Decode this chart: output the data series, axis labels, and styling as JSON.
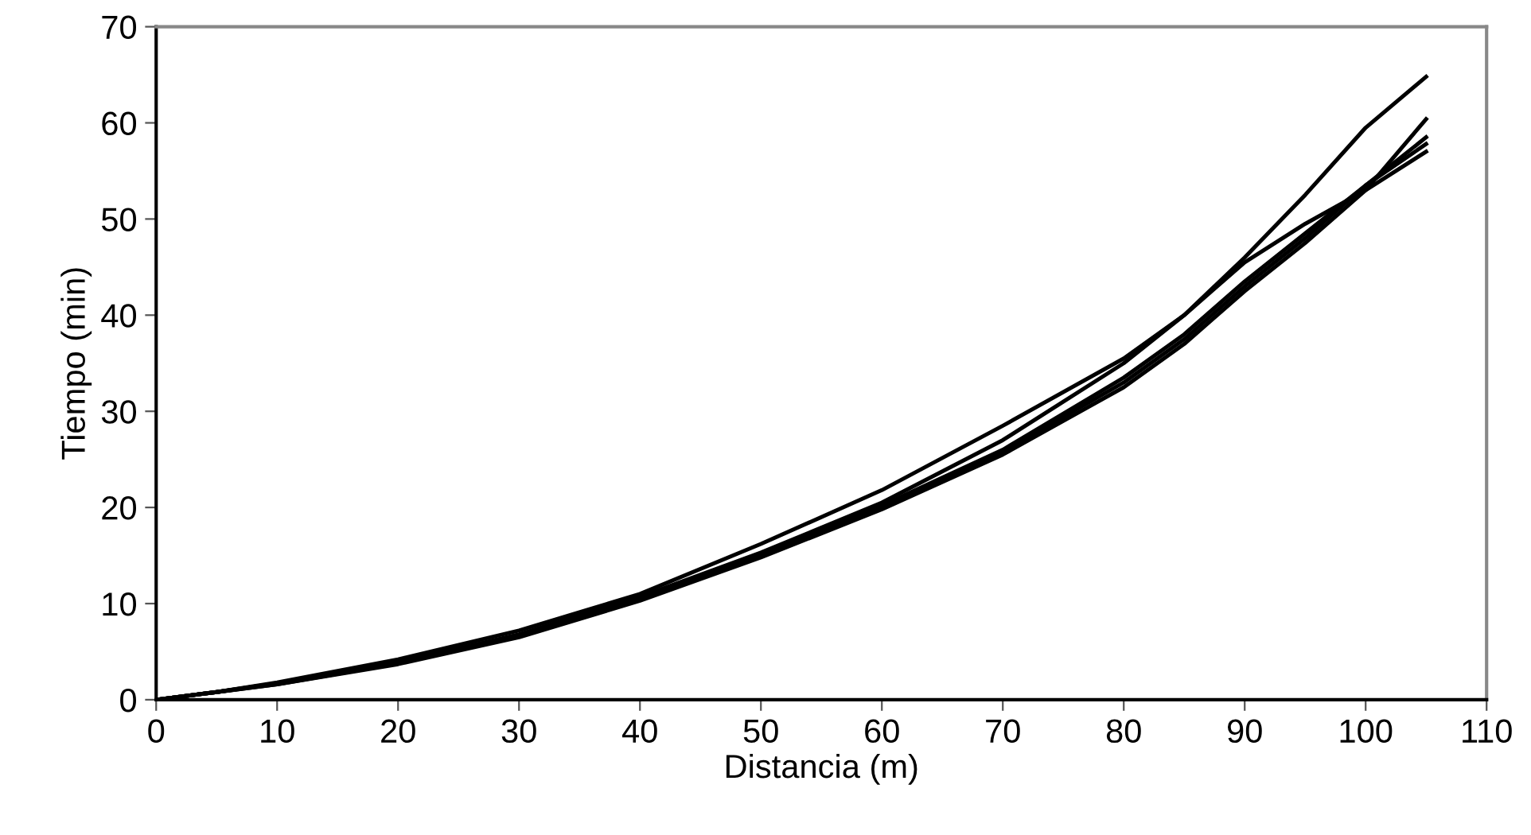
{
  "chart_data": {
    "type": "line",
    "xlabel": "Distancia (m)",
    "ylabel": "Tiempo (min)",
    "xlim": [
      0,
      110
    ],
    "ylim": [
      0,
      70
    ],
    "xticks": [
      0,
      10,
      20,
      30,
      40,
      50,
      60,
      70,
      80,
      90,
      100,
      110
    ],
    "yticks": [
      0,
      10,
      20,
      30,
      40,
      50,
      60,
      70
    ],
    "grid": false,
    "legend": false,
    "marker": "none",
    "line_style": "solid",
    "x": [
      0,
      5,
      10,
      20,
      30,
      40,
      50,
      60,
      70,
      80,
      85,
      90,
      95,
      100,
      105
    ],
    "series": [
      {
        "color": "#000000",
        "values": [
          0,
          0.8,
          1.7,
          3.9,
          6.8,
          10.7,
          15.3,
          20.5,
          27,
          35,
          40,
          46,
          52.5,
          59.5,
          64.8
        ]
      },
      {
        "color": "#000000",
        "values": [
          0,
          0.8,
          1.8,
          4.2,
          7.2,
          11,
          16.2,
          21.8,
          28.5,
          35.5,
          40,
          45.5,
          49.5,
          53,
          57.0
        ]
      },
      {
        "color": "#000000",
        "values": [
          0,
          0.8,
          1.6,
          3.7,
          6.5,
          10.3,
          14.8,
          19.8,
          25.5,
          32.5,
          37,
          42.5,
          47.5,
          53,
          60.4
        ]
      },
      {
        "color": "#000000",
        "values": [
          0,
          0.8,
          1.6,
          3.8,
          6.6,
          10.4,
          14.9,
          20,
          25.8,
          33,
          37.5,
          43,
          48,
          53.5,
          58.5
        ]
      },
      {
        "color": "#000000",
        "values": [
          0,
          0.8,
          1.7,
          3.9,
          6.7,
          10.5,
          15,
          20.2,
          26,
          33.5,
          38,
          43.5,
          48.5,
          53.5,
          57.8
        ]
      }
    ]
  }
}
